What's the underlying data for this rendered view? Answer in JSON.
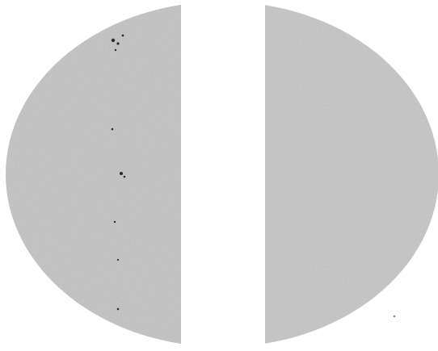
{
  "image": {
    "kind": "grayscale halftone scan",
    "subject": "solar-disk"
  },
  "colors": {
    "background": "#ffffff",
    "disk_fill": "#b9b9b9",
    "disk_shade": "#a7a7a7",
    "spot": "#2b2b2b",
    "gap": "#ffffff"
  },
  "features": [
    "left-half-disk",
    "right-half-disk",
    "vertical-white-gap",
    "sunspot-cluster",
    "limb-edge"
  ]
}
